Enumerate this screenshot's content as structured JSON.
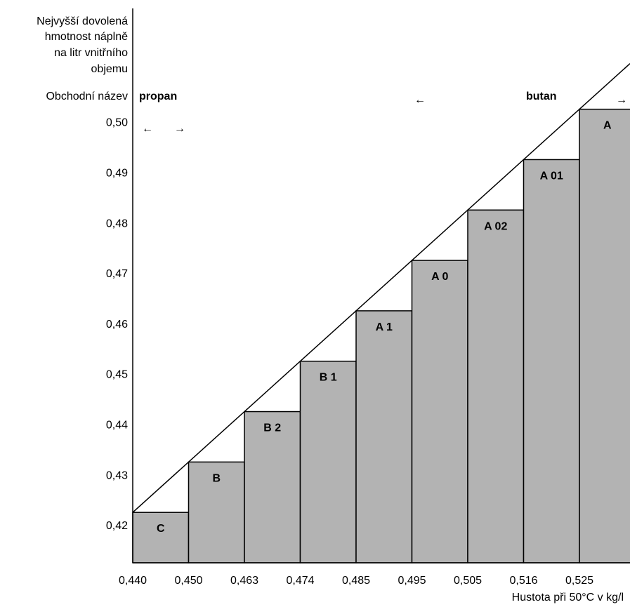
{
  "chart_data": {
    "type": "bar",
    "ylabel_lines": [
      "Nejvyšší dovolená",
      "hmotnost náplně",
      "na litr vnitřního",
      "objemu"
    ],
    "trade_name_label": "Obchodní název",
    "xlabel": "Hustota při 50°C v kg/l",
    "x_ticks": [
      "0,440",
      "0,450",
      "0,463",
      "0,474",
      "0,485",
      "0,495",
      "0,505",
      "0,516",
      "0,525"
    ],
    "y_ticks": [
      "0,42",
      "0,43",
      "0,44",
      "0,45",
      "0,46",
      "0,47",
      "0,48",
      "0,49",
      "0,50"
    ],
    "bars": [
      {
        "label": "C",
        "value": 0.42
      },
      {
        "label": "B",
        "value": 0.43
      },
      {
        "label": "B 2",
        "value": 0.44
      },
      {
        "label": "B 1",
        "value": 0.45
      },
      {
        "label": "A 1",
        "value": 0.46
      },
      {
        "label": "A 0",
        "value": 0.47
      },
      {
        "label": "A 02",
        "value": 0.48
      },
      {
        "label": "A 01",
        "value": 0.49
      },
      {
        "label": "A",
        "value": 0.5
      }
    ],
    "ylim": [
      0.41,
      0.52
    ],
    "trade_names": {
      "propan": "propan",
      "butan": "butan",
      "arrow_left": "←",
      "arrow_right": "→"
    },
    "colors": {
      "bar_fill": "#b3b3b3",
      "stroke": "#000000"
    },
    "diagonal_line": true
  }
}
